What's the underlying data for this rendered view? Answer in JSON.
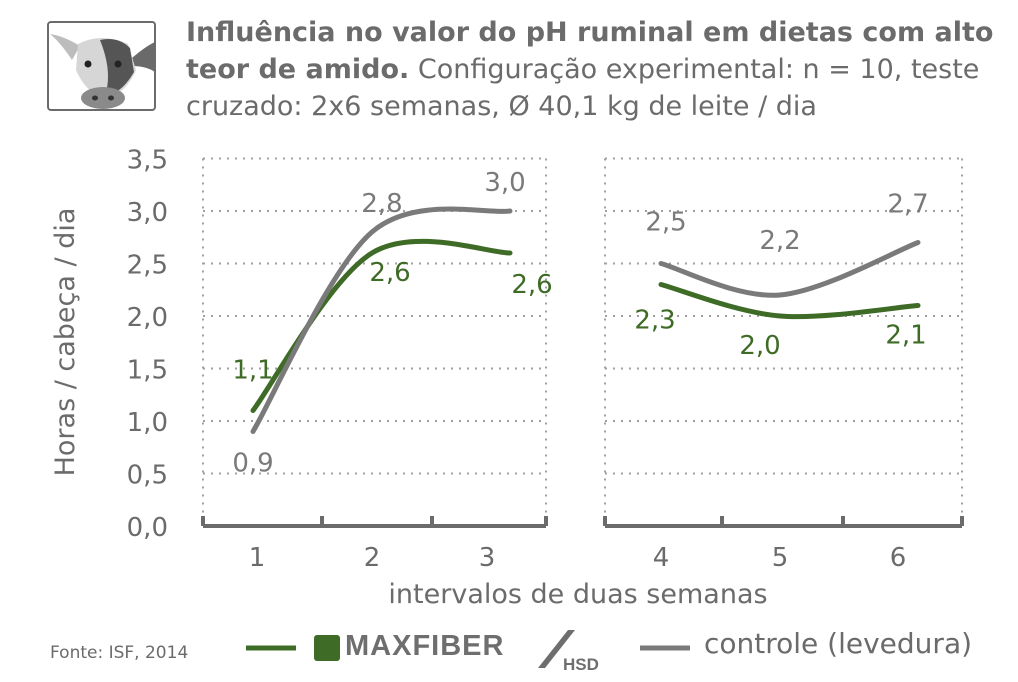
{
  "title": {
    "bold": "Influência no valor do pH ruminal em dietas com alto teor de amido.",
    "rest": " Configuração experimental: n = 10, teste cruzado: 2x6 semanas, Ø 40,1 kg de leite / dia"
  },
  "source": "Fonte: ISF, 2014",
  "legend": {
    "brand_main": "MAXFIBER",
    "brand_sub": "HSD",
    "control_label": "controle (levedura)"
  },
  "colors": {
    "maxfiber": "#3e6b26",
    "controle": "#7a7a7a",
    "axis": "#6b6b6b",
    "grid": "#a0a0a0"
  },
  "icon": "cow-head-icon",
  "chart_data": {
    "type": "line",
    "xlabel": "intervalos de duas semanas",
    "ylabel": "Horas / cabeça / dia",
    "ylim": [
      0,
      3.5
    ],
    "yticks": [
      "0,0",
      "0,5",
      "1,0",
      "1,5",
      "2,0",
      "2,5",
      "3,0",
      "3,5"
    ],
    "grid": "dotted",
    "categories": [
      "1",
      "2",
      "3",
      "4",
      "5",
      "6"
    ],
    "panels": [
      [
        "1",
        "2",
        "3"
      ],
      [
        "4",
        "5",
        "6"
      ]
    ],
    "series": [
      {
        "name": "MAXFIBER HSD",
        "values": [
          1.1,
          2.6,
          2.6,
          2.3,
          2.0,
          2.1
        ],
        "labels": [
          "1,1",
          "2,6",
          "2,6",
          "2,3",
          "2,0",
          "2,1"
        ]
      },
      {
        "name": "controle (levedura)",
        "values": [
          0.9,
          2.8,
          3.0,
          2.5,
          2.2,
          2.7
        ],
        "labels": [
          "0,9",
          "2,8",
          "3,0",
          "2,5",
          "2,2",
          "2,7"
        ]
      }
    ]
  }
}
